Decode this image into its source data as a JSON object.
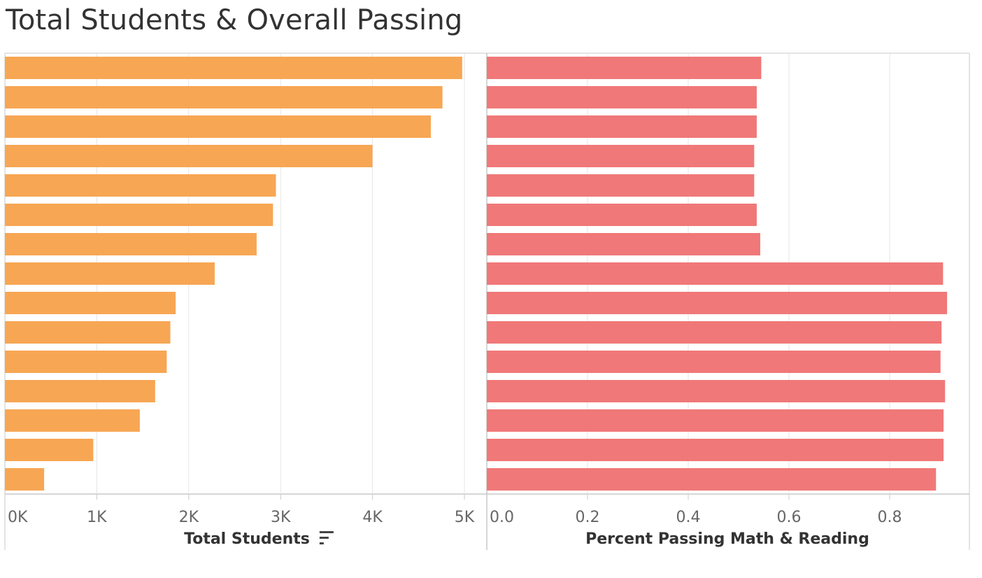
{
  "title": "Total Students & Overall Passing",
  "colors": {
    "students_bar": "#F7A654",
    "passing_bar": "#F07878",
    "grid": "#E6E6E6",
    "axis": "#C8C8C8",
    "sort_icon": "#444444"
  },
  "chart_data": [
    {
      "type": "bar",
      "orientation": "horizontal",
      "xlabel": "Total Students",
      "xlim": [
        0,
        5200
      ],
      "x_ticks": [
        0,
        1000,
        2000,
        3000,
        4000,
        5000
      ],
      "x_tick_labels": [
        "0K",
        "1K",
        "2K",
        "3K",
        "4K",
        "5K"
      ],
      "sort_icon": "sort-descending-icon",
      "values": [
        4976,
        4761,
        4635,
        4000,
        2949,
        2917,
        2739,
        2283,
        1858,
        1800,
        1761,
        1635,
        1468,
        962,
        427
      ],
      "grid": true,
      "color": "#F7A654"
    },
    {
      "type": "bar",
      "orientation": "horizontal",
      "xlabel": "Percent Passing Math & Reading",
      "xlim": [
        0,
        0.96
      ],
      "x_ticks": [
        0,
        0.2,
        0.4,
        0.6,
        0.8
      ],
      "x_tick_labels": [
        "0.0",
        "0.2",
        "0.4",
        "0.6",
        "0.8"
      ],
      "values": [
        0.545,
        0.536,
        0.536,
        0.531,
        0.531,
        0.536,
        0.543,
        0.906,
        0.914,
        0.903,
        0.901,
        0.91,
        0.907,
        0.907,
        0.892
      ],
      "grid": true,
      "color": "#F07878"
    }
  ]
}
